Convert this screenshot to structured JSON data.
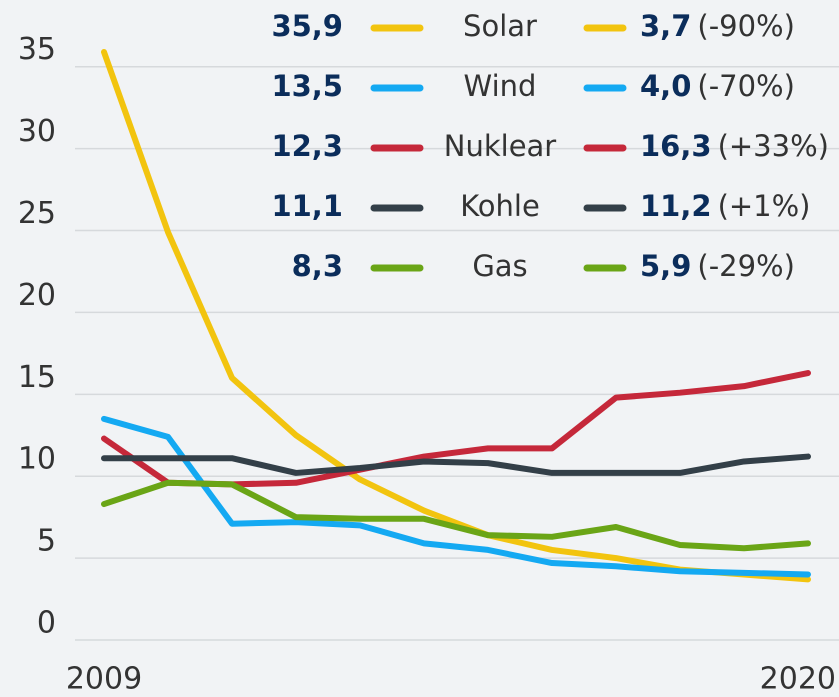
{
  "chart_data": {
    "type": "line",
    "categories": [
      "2009",
      null,
      null,
      null,
      null,
      null,
      null,
      null,
      null,
      null,
      null,
      "2020"
    ],
    "ylim": [
      0,
      35.9
    ],
    "yticks": [
      0,
      5,
      10,
      15,
      20,
      25,
      30,
      35
    ],
    "grid": true,
    "series": [
      {
        "name": "Solar",
        "color": "#f2c40f",
        "start_label": "35,9",
        "end_label": "3,7",
        "change_label": "(-90%)",
        "values": [
          35.9,
          24.9,
          16.0,
          12.5,
          9.8,
          7.9,
          6.4,
          5.5,
          5.0,
          4.3,
          4.0,
          3.7
        ]
      },
      {
        "name": "Wind",
        "color": "#14a9f2",
        "start_label": "13,5",
        "end_label": "4,0",
        "change_label": "(-70%)",
        "values": [
          13.5,
          12.4,
          7.1,
          7.2,
          7.0,
          5.9,
          5.5,
          4.7,
          4.5,
          4.2,
          4.1,
          4.0
        ]
      },
      {
        "name": "Nuklear",
        "color": "#c5283a",
        "start_label": "12,3",
        "end_label": "16,3",
        "change_label": "(+33%)",
        "values": [
          12.3,
          9.6,
          9.5,
          9.6,
          10.4,
          11.2,
          11.7,
          11.7,
          14.8,
          15.1,
          15.5,
          16.3
        ]
      },
      {
        "name": "Kohle",
        "color": "#333f48",
        "start_label": "11,1",
        "end_label": "11,2",
        "change_label": "(+1%)",
        "values": [
          11.1,
          11.1,
          11.1,
          10.2,
          10.5,
          10.9,
          10.8,
          10.2,
          10.2,
          10.2,
          10.9,
          11.2
        ]
      },
      {
        "name": "Gas",
        "color": "#6aa516",
        "start_label": "8,3",
        "end_label": "5,9",
        "change_label": "(-29%)",
        "values": [
          8.3,
          9.6,
          9.5,
          7.5,
          7.4,
          7.4,
          6.4,
          6.3,
          6.9,
          5.8,
          5.6,
          5.9
        ]
      }
    ]
  }
}
